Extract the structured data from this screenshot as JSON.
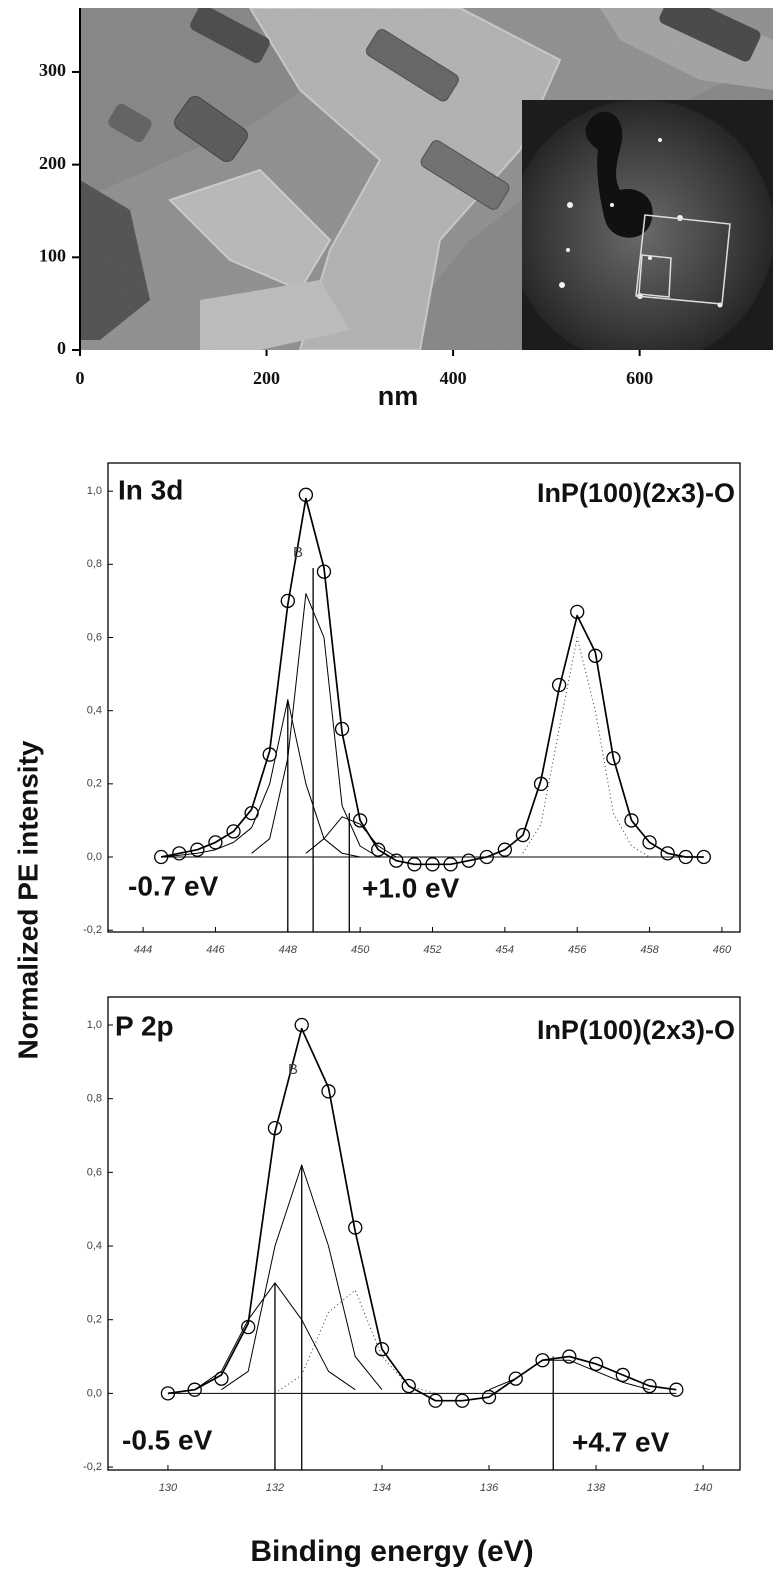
{
  "chart_data": [
    {
      "type": "image",
      "xlabel": "nm",
      "xlim": [
        0,
        743
      ],
      "ylim": [
        0,
        369
      ],
      "xticks": [
        0,
        200,
        400,
        600
      ],
      "yticks": [
        0,
        100,
        200,
        300
      ]
    },
    {
      "type": "xps",
      "panel_label": "In 3d",
      "sample_label": "InP(100)(2x3)-O",
      "peak_label": "B",
      "shift_labels": [
        "-0.7 eV",
        "+1.0 eV"
      ],
      "ylabel": "Normalized PE intensity",
      "xlim": [
        443.03,
        460.5
      ],
      "ylim": [
        -0.205,
        1.077
      ],
      "xticks": [
        444,
        446,
        448,
        450,
        452,
        454,
        456,
        458,
        460
      ],
      "yticks": [
        {
          "value": -0.2,
          "label": "-0,2"
        },
        {
          "value": 0,
          "label": "0,0"
        },
        {
          "value": 0.2,
          "label": "0,2"
        },
        {
          "value": 0.4,
          "label": "0,4"
        },
        {
          "value": 0.6,
          "label": "0,6"
        },
        {
          "value": 0.8,
          "label": "0,8"
        },
        {
          "value": 1.0,
          "label": "1,0"
        }
      ],
      "x": [
        444.5,
        445,
        445.5,
        446,
        446.5,
        447,
        447.5,
        448,
        448.5,
        449,
        449.5,
        450,
        450.5,
        451,
        451.5,
        452,
        452.5,
        453,
        453.5,
        454,
        454.5,
        455,
        455.5,
        456,
        456.5,
        457,
        457.5,
        458,
        458.5,
        459,
        459.5
      ],
      "series": [
        {
          "color": "#000000",
          "style": "thin",
          "values": [
            0.0,
            0.005,
            0.01,
            0.02,
            0.04,
            0.08,
            0.2,
            0.43,
            0.2,
            0.05,
            0.01,
            0.0,
            null,
            null,
            null,
            null,
            null,
            null,
            null,
            null,
            null,
            null,
            null,
            null,
            null,
            null,
            null,
            null,
            null,
            null,
            null
          ]
        },
        {
          "color": "#000000",
          "style": "thin",
          "values": [
            null,
            null,
            null,
            null,
            null,
            0.01,
            0.05,
            0.27,
            0.72,
            0.6,
            0.14,
            0.03,
            0.0,
            null,
            null,
            null,
            null,
            null,
            null,
            null,
            null,
            null,
            null,
            null,
            null,
            null,
            null,
            null,
            null,
            null,
            null
          ]
        },
        {
          "color": "#000000",
          "style": "thin",
          "values": [
            null,
            null,
            null,
            null,
            null,
            null,
            null,
            null,
            0.01,
            0.05,
            0.11,
            0.09,
            0.03,
            0.0,
            null,
            null,
            null,
            null,
            null,
            null,
            null,
            null,
            null,
            null,
            null,
            null,
            null,
            null,
            null,
            null,
            null
          ]
        },
        {
          "color": "#333333",
          "style": "dotted",
          "values": [
            null,
            null,
            null,
            null,
            null,
            null,
            null,
            null,
            null,
            null,
            null,
            null,
            null,
            null,
            null,
            null,
            null,
            null,
            null,
            null,
            0.01,
            0.09,
            0.35,
            0.6,
            0.4,
            0.12,
            0.03,
            0.0,
            null,
            null,
            null
          ]
        },
        {
          "color": "#000000",
          "style": "line",
          "values": [
            0.0,
            0.01,
            0.02,
            0.04,
            0.07,
            0.13,
            0.29,
            0.69,
            0.98,
            0.79,
            0.34,
            0.1,
            0.02,
            -0.01,
            -0.02,
            -0.02,
            -0.02,
            -0.01,
            0.0,
            0.02,
            0.06,
            0.21,
            0.46,
            0.66,
            0.56,
            0.27,
            0.1,
            0.04,
            0.01,
            0.0,
            0.0
          ]
        },
        {
          "color": "#000000",
          "style": "circle",
          "values": [
            0.0,
            0.01,
            0.02,
            0.04,
            0.07,
            0.12,
            0.28,
            0.7,
            0.99,
            0.78,
            0.35,
            0.1,
            0.02,
            -0.01,
            -0.02,
            -0.02,
            -0.02,
            -0.01,
            0.0,
            0.02,
            0.06,
            0.2,
            0.47,
            0.67,
            0.55,
            0.27,
            0.1,
            0.04,
            0.01,
            0.0,
            0.0
          ]
        }
      ],
      "component_lines": {
        "x": [
          448.0,
          448.7,
          449.7
        ],
        "values": [
          0.43,
          0.79,
          0.12
        ]
      }
    },
    {
      "type": "xps",
      "panel_label": "P 2p",
      "sample_label": "InP(100)(2x3)-O",
      "peak_label": "B",
      "shift_labels": [
        "-0.5 eV",
        "+4.7 eV"
      ],
      "xlabel": "Binding energy (eV)",
      "xlim": [
        128.88,
        140.69
      ],
      "ylim": [
        -0.208,
        1.076
      ],
      "xticks": [
        130,
        132,
        134,
        136,
        138,
        140
      ],
      "yticks": [
        {
          "value": -0.2,
          "label": "-0,2"
        },
        {
          "value": 0,
          "label": "0,0"
        },
        {
          "value": 0.2,
          "label": "0,2"
        },
        {
          "value": 0.4,
          "label": "0,4"
        },
        {
          "value": 0.6,
          "label": "0,6"
        },
        {
          "value": 0.8,
          "label": "0,8"
        },
        {
          "value": 1.0,
          "label": "1,0"
        }
      ],
      "x": [
        130,
        130.5,
        131,
        131.5,
        132,
        132.5,
        133,
        133.5,
        134,
        134.5,
        135,
        135.5,
        136,
        136.5,
        137,
        137.5,
        138,
        138.5,
        139,
        139.5
      ],
      "series": [
        {
          "color": "#000000",
          "style": "thin",
          "values": [
            null,
            0.01,
            0.06,
            0.2,
            0.3,
            0.2,
            0.06,
            0.01,
            null,
            null,
            null,
            null,
            null,
            null,
            null,
            null,
            null,
            null,
            null,
            null
          ]
        },
        {
          "color": "#000000",
          "style": "thin",
          "values": [
            null,
            null,
            0.01,
            0.06,
            0.4,
            0.62,
            0.4,
            0.1,
            0.01,
            null,
            null,
            null,
            null,
            null,
            null,
            null,
            null,
            null,
            null,
            null
          ]
        },
        {
          "color": "#333333",
          "style": "dotted",
          "values": [
            null,
            null,
            null,
            null,
            0.0,
            0.05,
            0.22,
            0.28,
            0.1,
            0.02,
            0.0,
            null,
            null,
            null,
            null,
            null,
            null,
            null,
            null,
            null
          ]
        },
        {
          "color": "#000000",
          "style": "thin",
          "values": [
            null,
            null,
            null,
            null,
            null,
            null,
            null,
            null,
            null,
            null,
            null,
            null,
            0.01,
            0.04,
            0.09,
            0.09,
            0.06,
            0.03,
            0.01,
            null
          ]
        },
        {
          "color": "#000000",
          "style": "line",
          "values": [
            0.0,
            0.01,
            0.05,
            0.19,
            0.71,
            0.99,
            0.83,
            0.44,
            0.12,
            0.02,
            -0.02,
            -0.02,
            -0.01,
            0.04,
            0.09,
            0.1,
            0.08,
            0.05,
            0.02,
            0.01
          ]
        },
        {
          "color": "#000000",
          "style": "circle",
          "values": [
            0.0,
            0.01,
            0.04,
            0.18,
            0.72,
            1.0,
            0.82,
            0.45,
            0.12,
            0.02,
            -0.02,
            -0.02,
            -0.01,
            0.04,
            0.09,
            0.1,
            0.08,
            0.05,
            0.02,
            0.01
          ]
        }
      ],
      "component_lines": {
        "x": [
          132.0,
          132.5,
          137.2
        ],
        "values": [
          0.3,
          0.62,
          0.1
        ]
      }
    }
  ]
}
